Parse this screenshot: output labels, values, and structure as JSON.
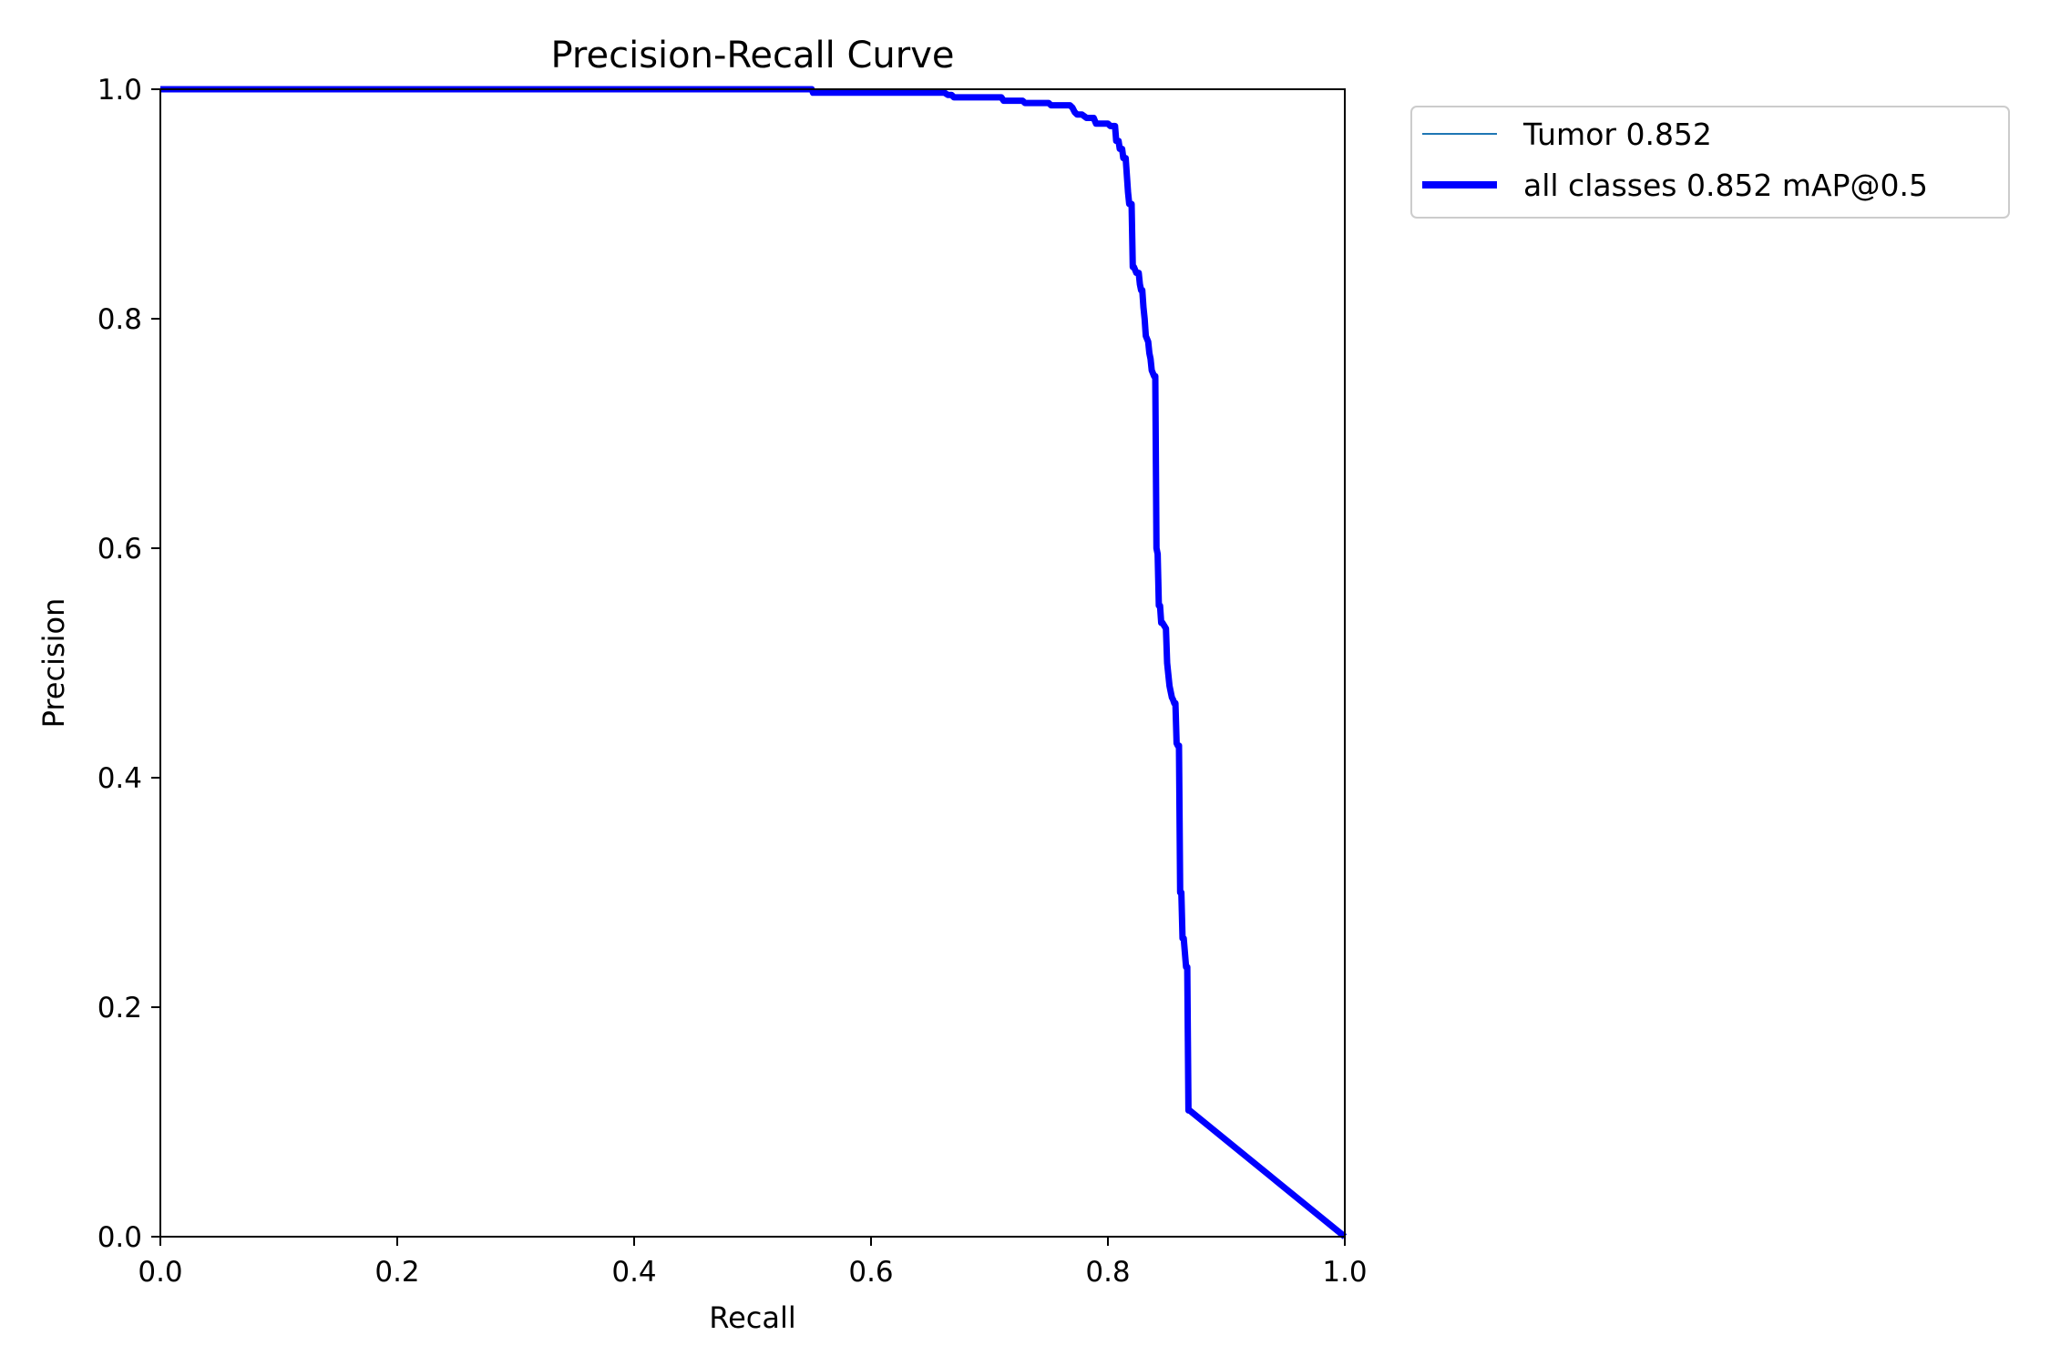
{
  "chart_data": {
    "type": "line",
    "title": "Precision-Recall Curve",
    "xlabel": "Recall",
    "ylabel": "Precision",
    "xlim": [
      0.0,
      1.0
    ],
    "ylim": [
      0.0,
      1.0
    ],
    "xticks": [
      "0.0",
      "0.2",
      "0.4",
      "0.6",
      "0.8",
      "1.0"
    ],
    "yticks": [
      "0.0",
      "0.2",
      "0.4",
      "0.6",
      "0.8",
      "1.0"
    ],
    "grid": false,
    "legend_position": "outside-upper-right",
    "legend": [
      {
        "label": "Tumor 0.852",
        "color": "#1f77b4",
        "style": "thin"
      },
      {
        "label": "all classes 0.852 mAP@0.5",
        "color": "#0000ff",
        "style": "thick"
      }
    ],
    "series": [
      {
        "name": "Tumor 0.852",
        "color": "#1f77b4",
        "x": [
          0.0,
          0.55,
          0.551,
          0.662,
          0.665,
          0.668,
          0.67,
          0.71,
          0.712,
          0.728,
          0.73,
          0.75,
          0.752,
          0.768,
          0.77,
          0.772,
          0.774,
          0.778,
          0.782,
          0.788,
          0.79,
          0.8,
          0.802,
          0.806,
          0.807,
          0.809,
          0.81,
          0.812,
          0.813,
          0.815,
          0.817,
          0.818,
          0.82,
          0.821,
          0.822,
          0.824,
          0.826,
          0.827,
          0.828,
          0.829,
          0.83,
          0.831,
          0.832,
          0.834,
          0.835,
          0.836,
          0.837,
          0.839,
          0.84,
          0.841,
          0.842,
          0.843,
          0.844,
          0.845,
          0.846,
          0.849,
          0.85,
          0.851,
          0.852,
          0.853,
          0.854,
          0.855,
          0.856,
          0.857,
          0.858,
          0.859,
          0.86,
          0.861,
          0.862,
          0.863,
          0.864,
          0.866,
          0.867,
          0.868,
          0.869,
          1.0
        ],
        "y": [
          1.0,
          1.0,
          0.997,
          0.997,
          0.995,
          0.995,
          0.993,
          0.993,
          0.99,
          0.99,
          0.988,
          0.988,
          0.986,
          0.986,
          0.984,
          0.98,
          0.978,
          0.978,
          0.975,
          0.975,
          0.97,
          0.97,
          0.968,
          0.968,
          0.955,
          0.955,
          0.948,
          0.948,
          0.94,
          0.94,
          0.91,
          0.9,
          0.9,
          0.845,
          0.845,
          0.84,
          0.84,
          0.83,
          0.825,
          0.825,
          0.81,
          0.8,
          0.785,
          0.78,
          0.77,
          0.765,
          0.755,
          0.75,
          0.75,
          0.6,
          0.595,
          0.55,
          0.55,
          0.535,
          0.535,
          0.53,
          0.5,
          0.49,
          0.48,
          0.475,
          0.47,
          0.468,
          0.465,
          0.465,
          0.43,
          0.428,
          0.428,
          0.3,
          0.3,
          0.26,
          0.26,
          0.235,
          0.235,
          0.11,
          0.11,
          0.0
        ]
      },
      {
        "name": "all classes 0.852 mAP@0.5",
        "color": "#0000ff",
        "x": [
          0.0,
          0.55,
          0.551,
          0.662,
          0.665,
          0.668,
          0.67,
          0.71,
          0.712,
          0.728,
          0.73,
          0.75,
          0.752,
          0.768,
          0.77,
          0.772,
          0.774,
          0.778,
          0.782,
          0.788,
          0.79,
          0.8,
          0.802,
          0.806,
          0.807,
          0.809,
          0.81,
          0.812,
          0.813,
          0.815,
          0.817,
          0.818,
          0.82,
          0.821,
          0.822,
          0.824,
          0.826,
          0.827,
          0.828,
          0.829,
          0.83,
          0.831,
          0.832,
          0.834,
          0.835,
          0.836,
          0.837,
          0.839,
          0.84,
          0.841,
          0.842,
          0.843,
          0.844,
          0.845,
          0.846,
          0.849,
          0.85,
          0.851,
          0.852,
          0.853,
          0.854,
          0.855,
          0.856,
          0.857,
          0.858,
          0.859,
          0.86,
          0.861,
          0.862,
          0.863,
          0.864,
          0.866,
          0.867,
          0.868,
          0.869,
          1.0
        ],
        "y": [
          1.0,
          1.0,
          0.997,
          0.997,
          0.995,
          0.995,
          0.993,
          0.993,
          0.99,
          0.99,
          0.988,
          0.988,
          0.986,
          0.986,
          0.984,
          0.98,
          0.978,
          0.978,
          0.975,
          0.975,
          0.97,
          0.97,
          0.968,
          0.968,
          0.955,
          0.955,
          0.948,
          0.948,
          0.94,
          0.94,
          0.91,
          0.9,
          0.9,
          0.845,
          0.845,
          0.84,
          0.84,
          0.83,
          0.825,
          0.825,
          0.81,
          0.8,
          0.785,
          0.78,
          0.77,
          0.765,
          0.755,
          0.75,
          0.75,
          0.6,
          0.595,
          0.55,
          0.55,
          0.535,
          0.535,
          0.53,
          0.5,
          0.49,
          0.48,
          0.475,
          0.47,
          0.468,
          0.465,
          0.465,
          0.43,
          0.428,
          0.428,
          0.3,
          0.3,
          0.26,
          0.26,
          0.235,
          0.235,
          0.11,
          0.11,
          0.0
        ]
      }
    ]
  }
}
